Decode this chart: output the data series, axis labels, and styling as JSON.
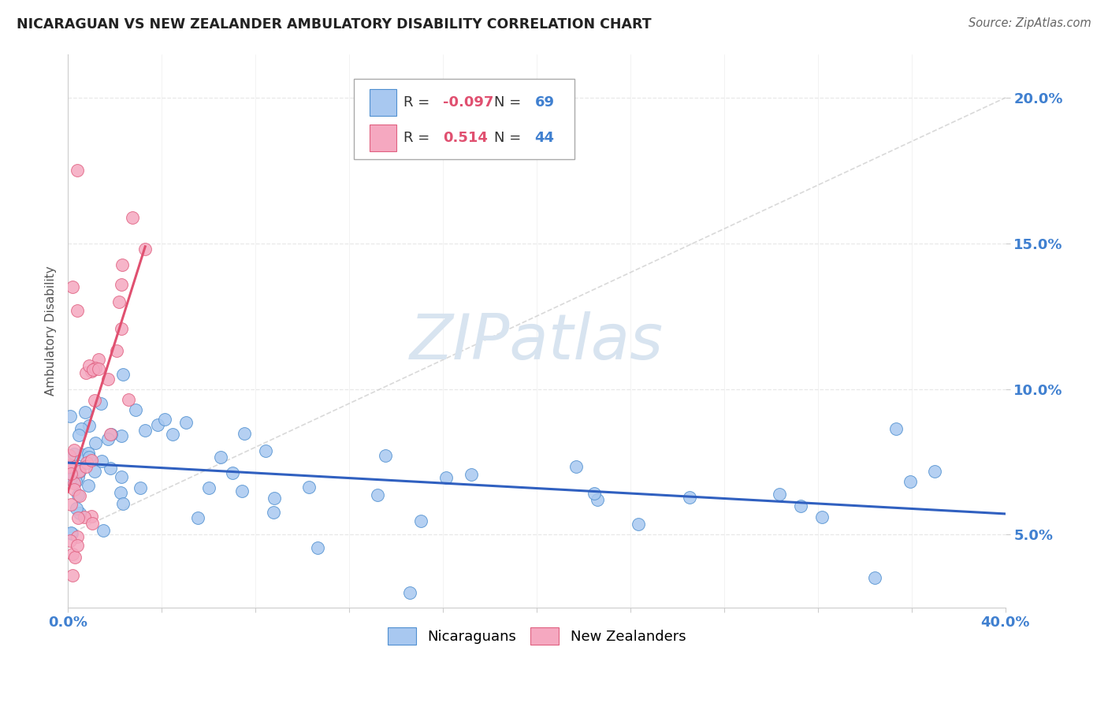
{
  "title": "NICARAGUAN VS NEW ZEALANDER AMBULATORY DISABILITY CORRELATION CHART",
  "source": "Source: ZipAtlas.com",
  "ylabel": "Ambulatory Disability",
  "xlim": [
    0.0,
    0.4
  ],
  "ylim": [
    0.025,
    0.215
  ],
  "yticks": [
    0.05,
    0.1,
    0.15,
    0.2
  ],
  "ytick_labels": [
    "5.0%",
    "10.0%",
    "15.0%",
    "20.0%"
  ],
  "xtick_show": [
    "0.0%",
    "40.0%"
  ],
  "blue_R": -0.097,
  "blue_N": 69,
  "pink_R": 0.514,
  "pink_N": 44,
  "blue_fill": "#a8c8f0",
  "pink_fill": "#f5a8c0",
  "blue_edge": "#5090d0",
  "pink_edge": "#e06080",
  "blue_line": "#3060c0",
  "pink_line": "#e05070",
  "diag_color": "#d0d0d0",
  "watermark_color": "#d8e4f0",
  "R_color": "#e05070",
  "N_color": "#4080d0",
  "background": "#ffffff",
  "grid_color": "#e8e8e8",
  "title_color": "#222222",
  "source_color": "#666666",
  "ylabel_color": "#555555",
  "tick_color": "#4080d0"
}
